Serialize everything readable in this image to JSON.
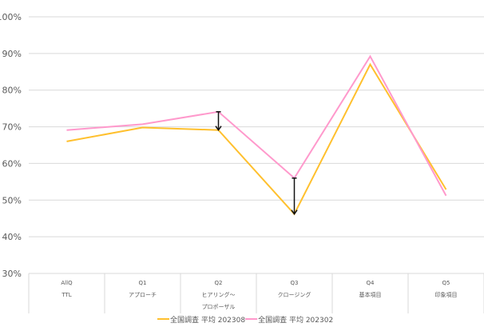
{
  "chart_data": {
    "type": "line",
    "title": "",
    "xlabel": "",
    "ylabel": "",
    "ylim": [
      30,
      100
    ],
    "yticks": [
      "30%",
      "40%",
      "50%",
      "60%",
      "70%",
      "80%",
      "90%",
      "100%"
    ],
    "grid": true,
    "legend_position": "bottom",
    "categories": [
      {
        "line1": "AllQ",
        "line2": "TTL",
        "line3": ""
      },
      {
        "line1": "Q1",
        "line2": "アプローチ",
        "line3": ""
      },
      {
        "line1": "Q2",
        "line2": "ヒアリング～",
        "line3": "プロポーザル"
      },
      {
        "line1": "Q3",
        "line2": "クロージング",
        "line3": ""
      },
      {
        "line1": "Q4",
        "line2": "基本項目",
        "line3": ""
      },
      {
        "line1": "Q5",
        "line2": "印象項目",
        "line3": ""
      }
    ],
    "series": [
      {
        "name": "全国調査 平均 202308",
        "color": "#FFC02E",
        "values": [
          66.0,
          69.8,
          69.1,
          46.2,
          87.0,
          52.9
        ]
      },
      {
        "name": "全国調査 平均 202302",
        "color": "#FF99CC",
        "values": [
          69.1,
          70.7,
          74.1,
          56.0,
          89.2,
          51.2
        ]
      }
    ],
    "annotations": [
      {
        "type": "arrow-down",
        "category_index": 2,
        "from": 74.1,
        "to": 69.1
      },
      {
        "type": "arrow-down",
        "category_index": 3,
        "from": 56.0,
        "to": 46.2
      }
    ]
  }
}
